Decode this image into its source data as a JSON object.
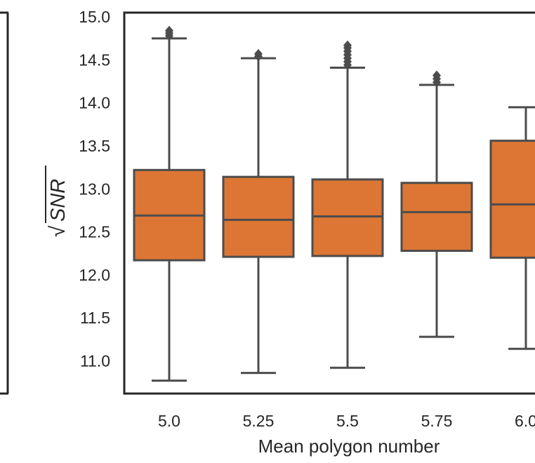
{
  "chart_data": {
    "type": "box",
    "xlabel": "Mean polygon number",
    "ylabel": "SNR",
    "ylabel_radical": "√",
    "ylim": [
      10.62,
      15.05
    ],
    "yticks": [
      "11.0",
      "11.5",
      "12.0",
      "12.5",
      "13.0",
      "13.5",
      "14.0",
      "14.5",
      "15.0"
    ],
    "categories": [
      "5.0",
      "5.25",
      "5.5",
      "5.75",
      "6.0"
    ],
    "boxes": [
      {
        "category": "5.0",
        "whisker_low": 10.77,
        "q1": 12.17,
        "median": 12.69,
        "q3": 13.22,
        "whisker_high": 14.75,
        "outliers": [
          14.78,
          14.81,
          14.84
        ]
      },
      {
        "category": "5.25",
        "whisker_low": 10.86,
        "q1": 12.21,
        "median": 12.64,
        "q3": 13.14,
        "whisker_high": 14.52,
        "outliers": [
          14.54,
          14.57
        ]
      },
      {
        "category": "5.5",
        "whisker_low": 10.92,
        "q1": 12.22,
        "median": 12.68,
        "q3": 13.11,
        "whisker_high": 14.41,
        "outliers": [
          14.44,
          14.48,
          14.52,
          14.56,
          14.6,
          14.64,
          14.67
        ]
      },
      {
        "category": "5.75",
        "whisker_low": 11.28,
        "q1": 12.28,
        "median": 12.73,
        "q3": 13.07,
        "whisker_high": 14.21,
        "outliers": [
          14.24,
          14.28,
          14.32
        ]
      },
      {
        "category": "6.0",
        "whisker_low": 11.14,
        "q1": 12.2,
        "median": 12.82,
        "q3": 13.56,
        "whisker_high": 13.95,
        "outliers": []
      }
    ],
    "colors": {
      "box_fill": "#dd7634",
      "line": "#4c4c4c",
      "axes": "#262626"
    },
    "grid": false
  }
}
